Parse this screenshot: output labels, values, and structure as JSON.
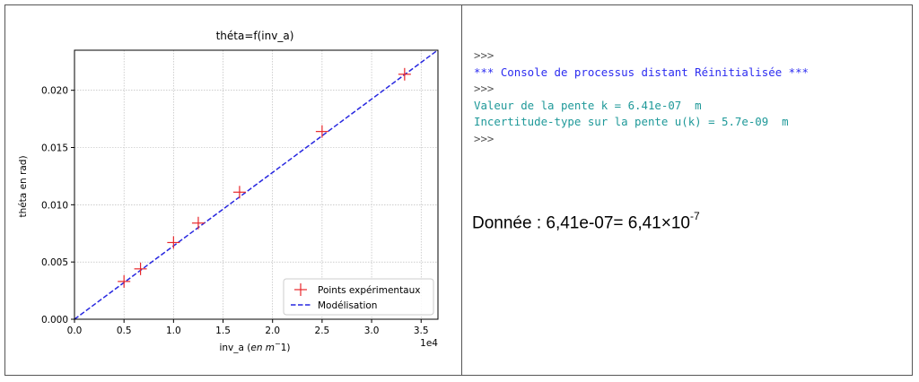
{
  "chart_data": {
    "type": "scatter",
    "title": "théta=f(inv_a)",
    "xlabel": "inv_a (en m^-1)",
    "xlabel_main": "inv_a (",
    "xlabel_italic": "en m",
    "xlabel_sup": "−",
    "xlabel_tail": "1)",
    "ylabel": "théta   en rad)",
    "x_scale_label": "1e4",
    "xlim": [
      0,
      36700
    ],
    "ylim": [
      0,
      0.0235
    ],
    "x_ticks": [
      0,
      5000,
      10000,
      15000,
      20000,
      25000,
      30000,
      35000
    ],
    "x_tick_labels": [
      "0.0",
      "0.5",
      "1.0",
      "1.5",
      "2.0",
      "2.5",
      "3.0",
      "3.5"
    ],
    "y_ticks": [
      0,
      0.005,
      0.01,
      0.015,
      0.02
    ],
    "y_tick_labels": [
      "0.000",
      "0.005",
      "0.010",
      "0.015",
      "0.020"
    ],
    "grid": true,
    "legend_position": "bottom-right",
    "series": [
      {
        "name": "Points expérimentaux",
        "kind": "markers",
        "marker": "plus",
        "color": "#e8272b",
        "x": [
          5000,
          6667,
          10000,
          12500,
          16667,
          25000,
          33333
        ],
        "y": [
          0.0033,
          0.0044,
          0.0067,
          0.0084,
          0.0111,
          0.0164,
          0.0214
        ]
      },
      {
        "name": "Modélisation",
        "kind": "line",
        "style": "dashed",
        "color": "#2727e0",
        "slope": 6.41e-07,
        "intercept": 0
      }
    ]
  },
  "console": {
    "lines": [
      {
        "text": ">>>",
        "style": "prompt"
      },
      {
        "text": "*** Console de processus distant Réinitialisée ***",
        "style": "blue"
      },
      {
        "text": ">>>",
        "style": "prompt"
      },
      {
        "text": "Valeur de la pente k = 6.41e-07  m",
        "style": "teal"
      },
      {
        "text": "Incertitude-type sur la pente u(k) = 5.7e-09  m",
        "style": "teal"
      },
      {
        "text": ">>>",
        "style": "prompt"
      }
    ]
  },
  "note": {
    "prefix": "Donnée : 6,41e-07= 6,41×10",
    "exponent": "-7"
  }
}
